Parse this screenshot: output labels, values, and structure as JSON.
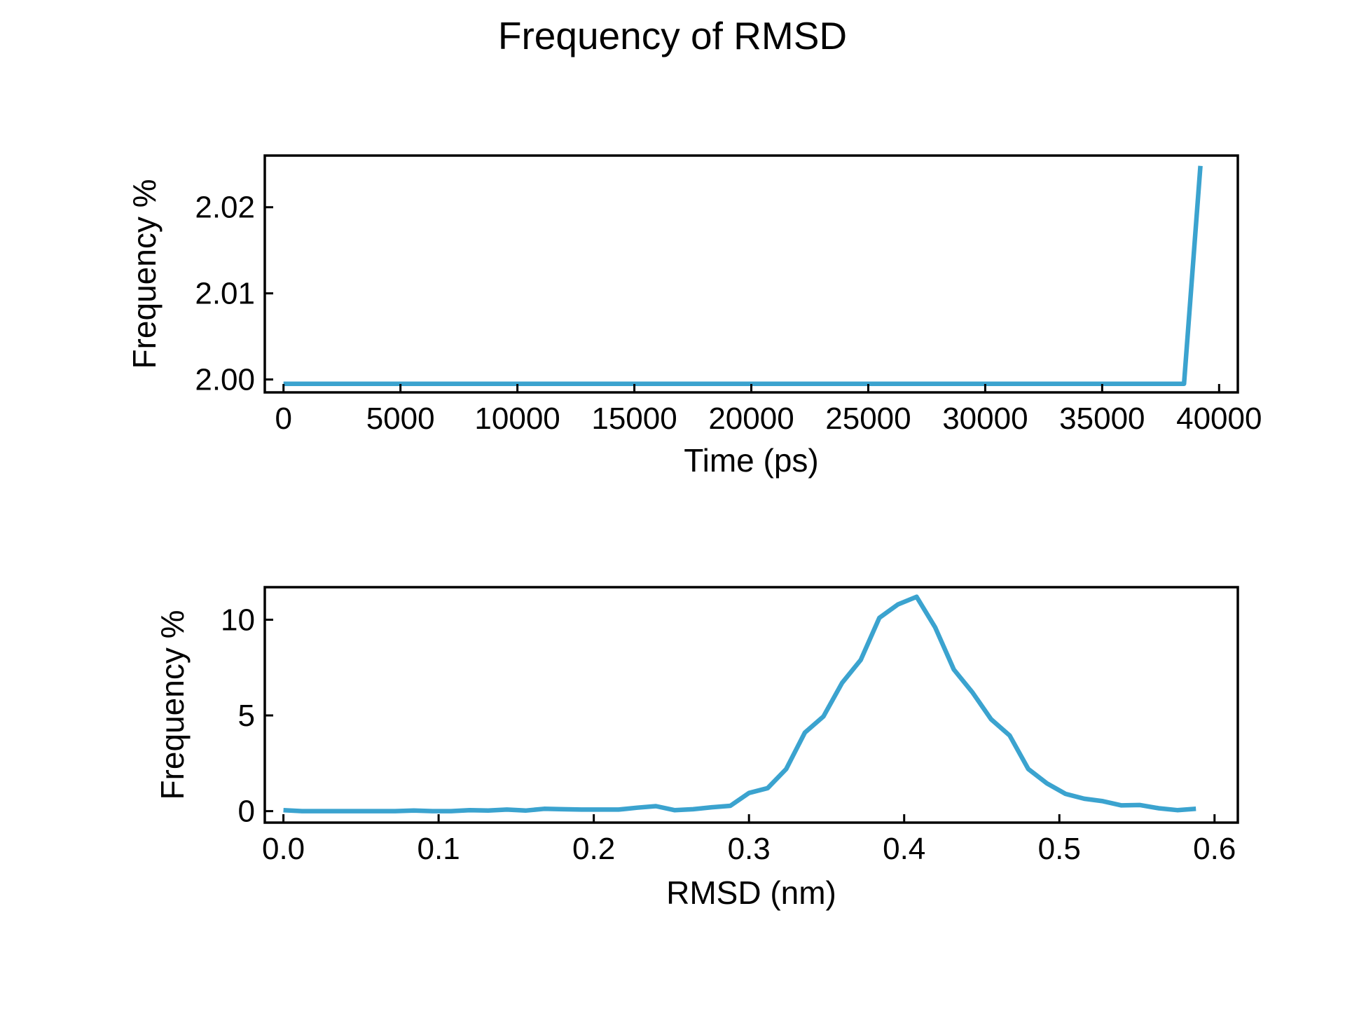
{
  "figure": {
    "title": "Frequency of RMSD",
    "line_color": "#3BA3CF"
  },
  "chart_data": [
    {
      "type": "line",
      "title": "",
      "xlabel": "Time (ps)",
      "ylabel": "Frequency %",
      "xlim": [
        -800,
        40800
      ],
      "ylim": [
        1.9985,
        2.026
      ],
      "xticks": [
        0,
        5000,
        10000,
        15000,
        20000,
        25000,
        30000,
        35000,
        40000
      ],
      "xtick_labels": [
        "0",
        "5000",
        "10000",
        "15000",
        "20000",
        "25000",
        "30000",
        "35000",
        "40000"
      ],
      "yticks": [
        2.0,
        2.01,
        2.02
      ],
      "ytick_labels": [
        "2.00",
        "2.01",
        "2.02"
      ],
      "grid": false,
      "series": [
        {
          "x": [
            0,
            38500,
            39200
          ],
          "y": [
            1.9995,
            1.9995,
            2.0248
          ]
        }
      ]
    },
    {
      "type": "line",
      "title": "",
      "xlabel": "RMSD (nm)",
      "ylabel": "Frequency %",
      "xlim": [
        -0.012,
        0.615
      ],
      "ylim": [
        -0.6,
        11.7
      ],
      "xticks": [
        0.0,
        0.1,
        0.2,
        0.3,
        0.4,
        0.5,
        0.6
      ],
      "xtick_labels": [
        "0.0",
        "0.1",
        "0.2",
        "0.3",
        "0.4",
        "0.5",
        "0.6"
      ],
      "yticks": [
        0,
        5,
        10
      ],
      "ytick_labels": [
        "0",
        "5",
        "10"
      ],
      "grid": false,
      "series": [
        {
          "x": [
            0.0,
            0.012,
            0.024,
            0.036,
            0.048,
            0.06,
            0.072,
            0.084,
            0.096,
            0.108,
            0.12,
            0.132,
            0.144,
            0.156,
            0.168,
            0.18,
            0.192,
            0.204,
            0.216,
            0.228,
            0.24,
            0.252,
            0.264,
            0.276,
            0.288,
            0.3,
            0.312,
            0.324,
            0.336,
            0.348,
            0.36,
            0.372,
            0.384,
            0.396,
            0.408,
            0.42,
            0.432,
            0.444,
            0.456,
            0.468,
            0.48,
            0.492,
            0.504,
            0.516,
            0.528,
            0.54,
            0.552,
            0.564,
            0.576,
            0.588
          ],
          "y": [
            0.05,
            0.0,
            0.0,
            0.0,
            0.0,
            0.0,
            0.0,
            0.03,
            0.0,
            0.0,
            0.05,
            0.03,
            0.08,
            0.03,
            0.12,
            0.1,
            0.08,
            0.08,
            0.08,
            0.18,
            0.26,
            0.05,
            0.1,
            0.2,
            0.28,
            0.95,
            1.2,
            2.2,
            4.1,
            4.95,
            6.7,
            7.9,
            10.1,
            10.8,
            11.2,
            9.6,
            7.4,
            6.2,
            4.8,
            3.95,
            2.2,
            1.45,
            0.9,
            0.65,
            0.52,
            0.3,
            0.32,
            0.15,
            0.05,
            0.12
          ]
        }
      ]
    }
  ]
}
